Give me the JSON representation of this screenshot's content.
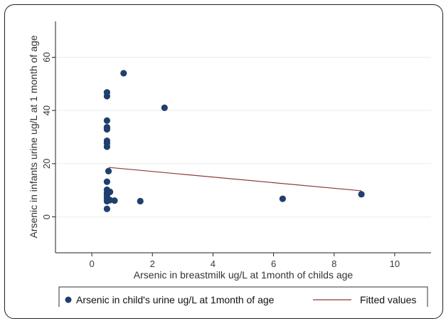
{
  "chart_data": {
    "type": "scatter",
    "xlabel": "Arsenic in breastmilk ug/L at 1month of childs age",
    "ylabel": "Arsenic in infants urine ug/L at 1 month of age",
    "xlim": [
      -1.2,
      11.2
    ],
    "ylim": [
      -13.5,
      73.5
    ],
    "xticks": [
      0,
      2,
      4,
      6,
      8,
      10
    ],
    "yticks": [
      0,
      20,
      40,
      60
    ],
    "grid": true,
    "legend_position": "bottom",
    "series": [
      {
        "name": "Arsenic in child's urine ug/L at 1month of age",
        "kind": "scatter",
        "color": "#1f3f6e",
        "points": [
          {
            "x": 0.5,
            "y": 3.0
          },
          {
            "x": 0.5,
            "y": 5.9
          },
          {
            "x": 0.5,
            "y": 7.0
          },
          {
            "x": 0.5,
            "y": 8.0
          },
          {
            "x": 0.5,
            "y": 9.0
          },
          {
            "x": 0.5,
            "y": 10.2
          },
          {
            "x": 0.5,
            "y": 13.2
          },
          {
            "x": 0.55,
            "y": 17.2
          },
          {
            "x": 0.5,
            "y": 26.4
          },
          {
            "x": 0.5,
            "y": 27.7
          },
          {
            "x": 0.5,
            "y": 28.6
          },
          {
            "x": 0.5,
            "y": 32.9
          },
          {
            "x": 0.5,
            "y": 33.7
          },
          {
            "x": 0.5,
            "y": 36.2
          },
          {
            "x": 0.5,
            "y": 45.4
          },
          {
            "x": 0.5,
            "y": 46.8
          },
          {
            "x": 0.6,
            "y": 6.3
          },
          {
            "x": 0.6,
            "y": 9.4
          },
          {
            "x": 0.75,
            "y": 6.1
          },
          {
            "x": 1.05,
            "y": 54.0
          },
          {
            "x": 1.6,
            "y": 5.9
          },
          {
            "x": 2.4,
            "y": 41.0
          },
          {
            "x": 6.3,
            "y": 6.8
          },
          {
            "x": 8.9,
            "y": 8.5
          }
        ]
      },
      {
        "name": "Fitted values",
        "kind": "line",
        "color": "#8b3a3a",
        "points": [
          {
            "x": 0.55,
            "y": 18.6
          },
          {
            "x": 8.9,
            "y": 9.8
          }
        ]
      }
    ]
  }
}
